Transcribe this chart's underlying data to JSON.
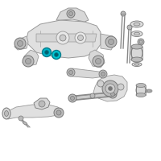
{
  "background_color": "#ffffff",
  "fig_width": 2.0,
  "fig_height": 2.0,
  "dpi": 100,
  "line_color": "#aaaaaa",
  "dark_gray": "#777777",
  "mid_gray": "#bbbbbb",
  "light_gray": "#d8d8d8",
  "highlight_teal": "#00b4c8",
  "highlight_teal2": "#00c8d4",
  "bolt_color": "#888888",
  "outline_color": "#999999"
}
